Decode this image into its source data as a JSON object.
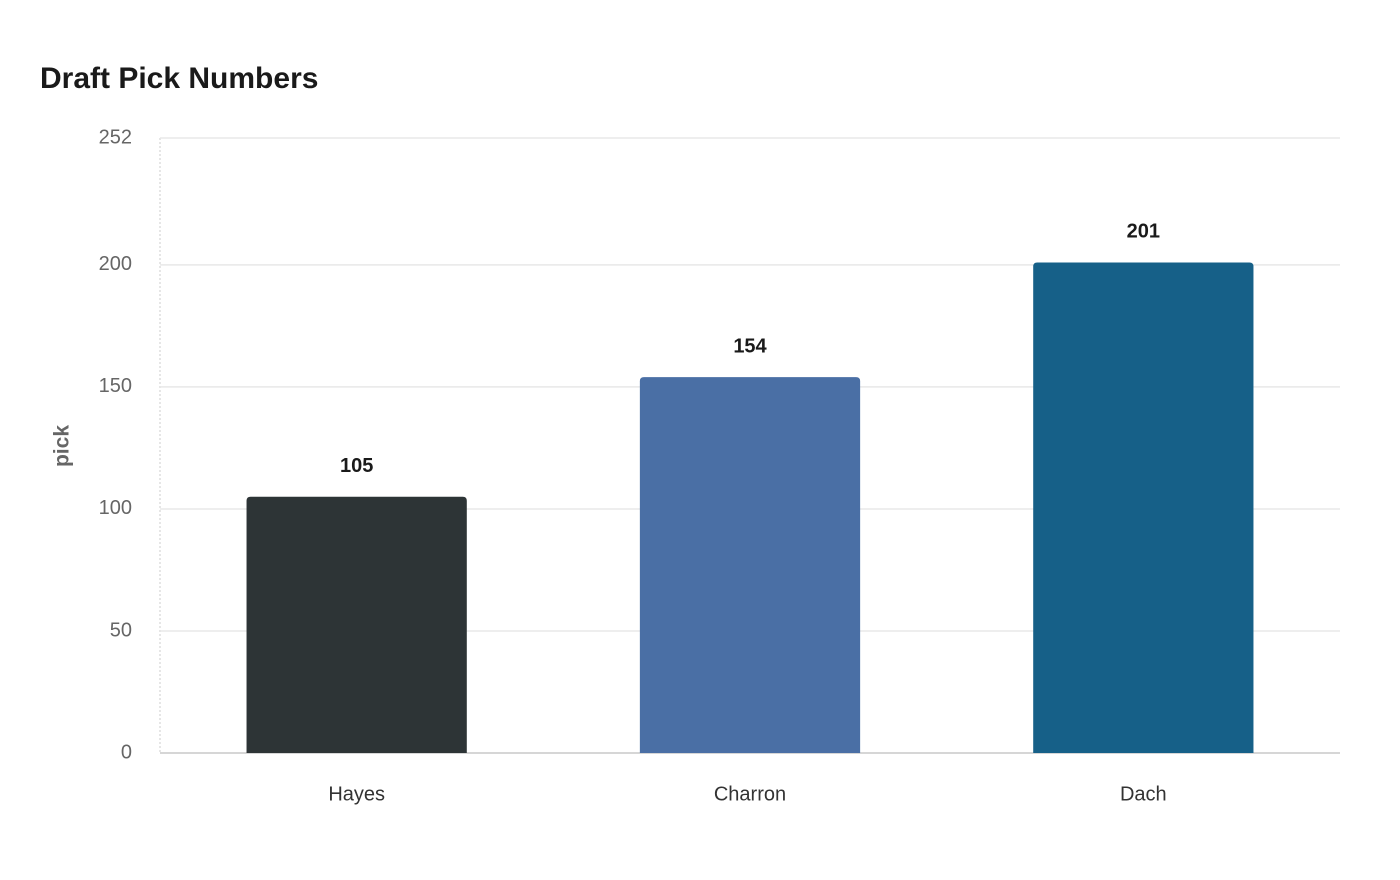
{
  "chart_data": {
    "type": "bar",
    "title": "Draft Pick Numbers",
    "y_label": "pick",
    "categories": [
      "Hayes",
      "Charron",
      "Dach"
    ],
    "values": [
      105,
      154,
      201
    ],
    "colors": [
      "#2d3436",
      "#4a6fa5",
      "#166088"
    ],
    "ylim": [
      0,
      252
    ],
    "yticks": [
      0,
      50,
      100,
      150,
      200,
      252
    ],
    "grid": true
  }
}
